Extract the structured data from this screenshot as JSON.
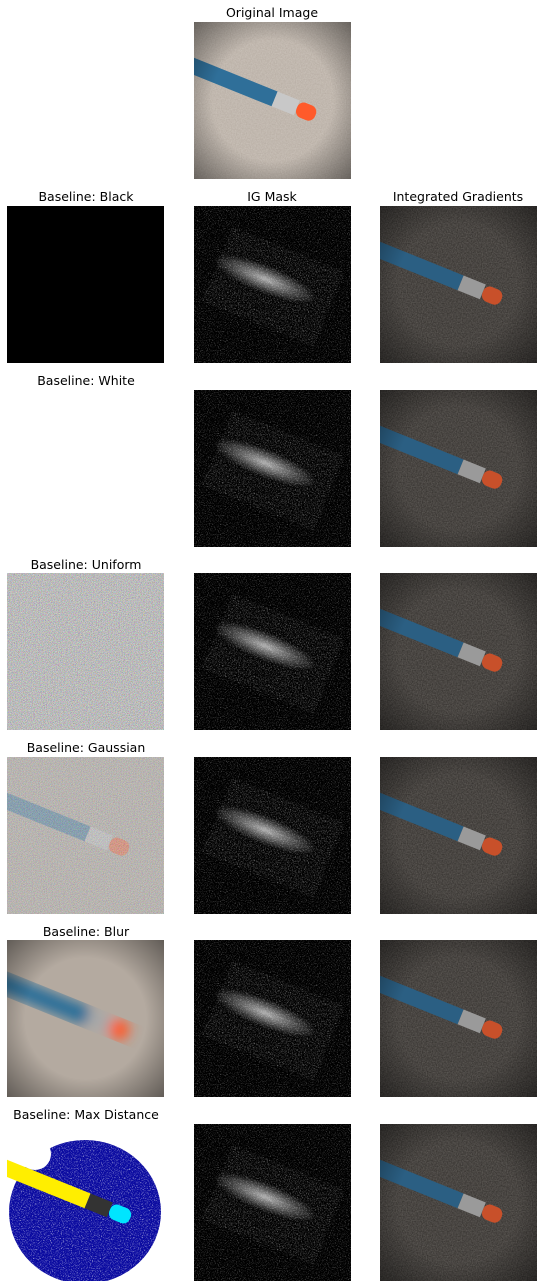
{
  "figure": {
    "original": {
      "title": "Original Image"
    },
    "rows": [
      {
        "baseline_title": "Baseline: Black",
        "mask_title": "IG Mask",
        "ig_title": "Integrated Gradients"
      },
      {
        "baseline_title": "Baseline: White",
        "mask_title": "",
        "ig_title": ""
      },
      {
        "baseline_title": "Baseline: Uniform",
        "mask_title": "",
        "ig_title": ""
      },
      {
        "baseline_title": "Baseline: Gaussian",
        "mask_title": "",
        "ig_title": ""
      },
      {
        "baseline_title": "Baseline: Blur",
        "mask_title": "",
        "ig_title": ""
      },
      {
        "baseline_title": "Baseline: Max Distance",
        "mask_title": "",
        "ig_title": ""
      }
    ]
  },
  "colors": {
    "carpet": "#b4aaa0",
    "pencil_body": "#2f6f99",
    "eraser": "#ff5a2a",
    "ferrule": "#c8c8c8",
    "mask_bg": "#000000",
    "ig_bg": "#2e2b28"
  }
}
